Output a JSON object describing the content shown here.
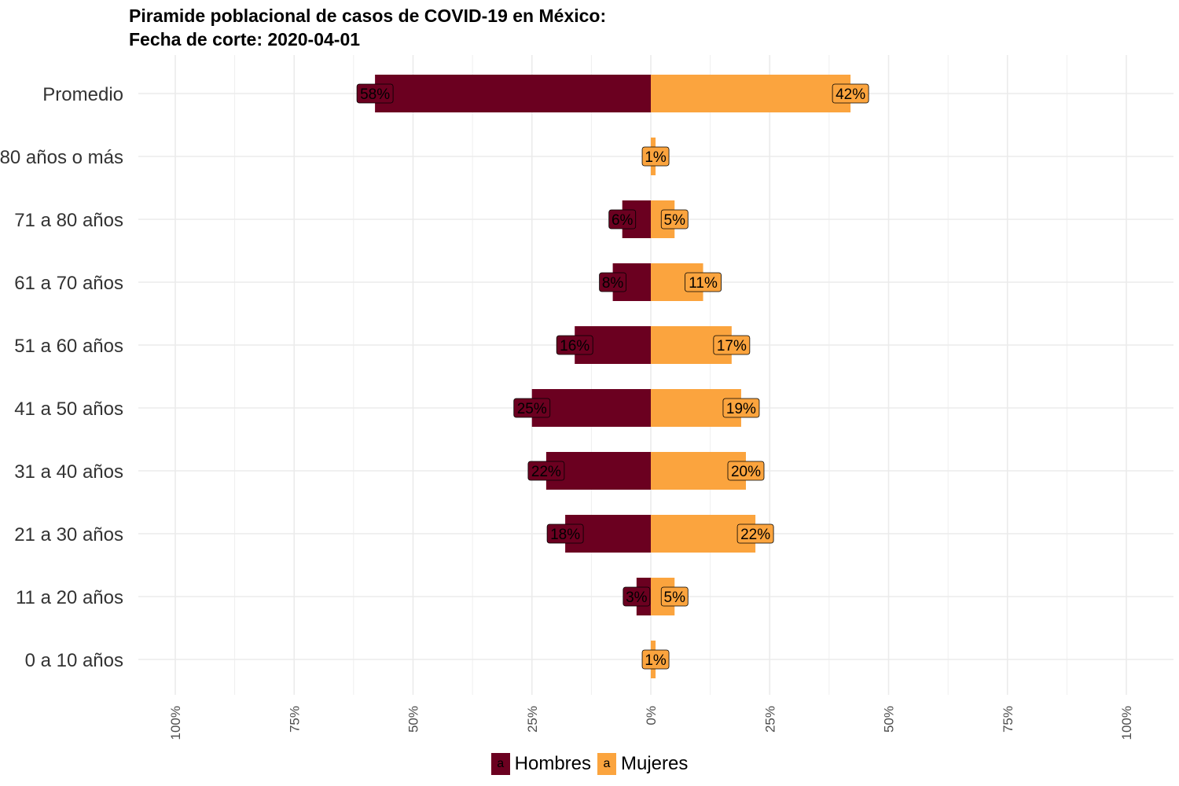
{
  "title": {
    "line1": "Piramide poblacional de casos de COVID-19 en México:",
    "line2": "Fecha de corte: 2020-04-01"
  },
  "colors": {
    "hombres": "#6B0020",
    "mujeres": "#FBA43E",
    "grid": "#EBEBEB",
    "label_text": "#000000"
  },
  "legend": {
    "key_glyph": "a",
    "hombres": "Hombres",
    "mujeres": "Mujeres"
  },
  "chart_data": {
    "type": "bar",
    "orientation": "horizontal",
    "layout": "population-pyramid",
    "categories": [
      "Promedio",
      "80 años o más",
      "71 a 80 años",
      "61 a 70 años",
      "51 a 60 años",
      "41 a 50 años",
      "31 a 40 años",
      "21 a 30 años",
      "11 a 20 años",
      "0 a 10 años"
    ],
    "series": [
      {
        "name": "Hombres",
        "side": "left",
        "values": [
          58,
          0,
          6,
          8,
          16,
          25,
          22,
          18,
          3,
          0
        ],
        "labels": [
          "58%",
          "",
          "6%",
          "8%",
          "16%",
          "25%",
          "22%",
          "18%",
          "3%",
          ""
        ]
      },
      {
        "name": "Mujeres",
        "side": "right",
        "values": [
          42,
          1,
          5,
          11,
          17,
          19,
          20,
          22,
          5,
          1
        ],
        "labels": [
          "42%",
          "1%",
          "5%",
          "11%",
          "17%",
          "19%",
          "20%",
          "22%",
          "5%",
          "1%"
        ]
      }
    ],
    "xlim": [
      -100,
      100
    ],
    "ticks": [
      -100,
      -75,
      -50,
      -25,
      0,
      25,
      50,
      75,
      100
    ],
    "tick_labels": [
      "100%",
      "75%",
      "50%",
      "25%",
      "0%",
      "25%",
      "50%",
      "75%",
      "100%"
    ],
    "grid": true,
    "legend_position": "bottom"
  }
}
